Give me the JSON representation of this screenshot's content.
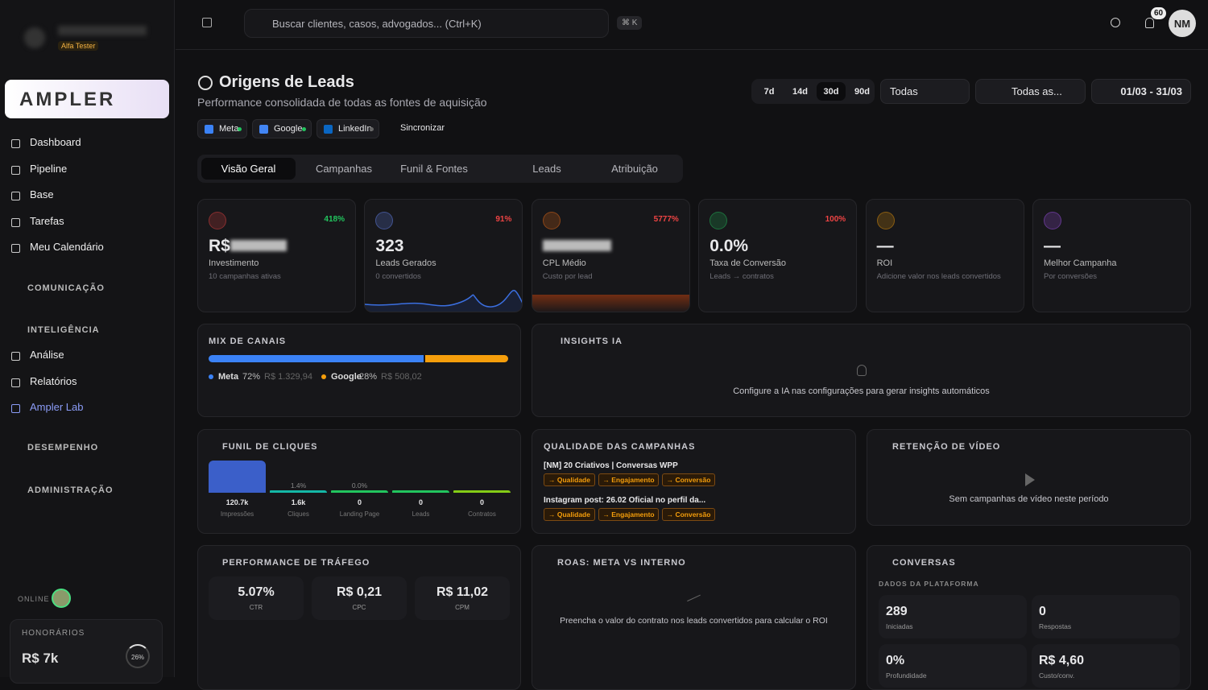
{
  "sidebar": {
    "badge": "Alfa Tester",
    "logo": "AMPLER",
    "nav": [
      "Dashboard",
      "Pipeline",
      "Base",
      "Tarefas",
      "Meu Calendário"
    ],
    "sections": [
      {
        "title": "COMUNICAÇÃO",
        "items": []
      },
      {
        "title": "INTELIGÊNCIA",
        "items": [
          "Análise",
          "Relatórios",
          "Ampler Lab"
        ]
      },
      {
        "title": "DESEMPENHO",
        "items": []
      },
      {
        "title": "ADMINISTRAÇÃO",
        "items": []
      }
    ],
    "online": "ONLINE",
    "fees": {
      "label": "HONORÁRIOS",
      "value": "R$ 7k",
      "percent": "26%"
    }
  },
  "topbar": {
    "search": "Buscar clientes, casos, advogados... (Ctrl+K)",
    "shortcut": "⌘ K",
    "notifications": "60",
    "avatar": "NM"
  },
  "header": {
    "title": "Origens de Leads",
    "subtitle": "Performance consolidada de todas as fontes de aquisição",
    "sources": [
      "Meta",
      "Google",
      "LinkedIn"
    ],
    "sync": "Sincronizar",
    "ranges": [
      "7d",
      "14d",
      "30d",
      "90d"
    ],
    "filter1": "Todas",
    "filter2": "Todas as...",
    "date": "01/03 - 31/03"
  },
  "tabs": [
    "Visão Geral",
    "Campanhas",
    "Funil & Fontes",
    "Leads",
    "Atribuição"
  ],
  "kpis": [
    {
      "value": "R$",
      "change": "418%",
      "label": "Investimento",
      "sub": "10 campanhas ativas"
    },
    {
      "value": "323",
      "change": "91%",
      "label": "Leads Gerados",
      "sub": "0 convertidos"
    },
    {
      "value": "",
      "change": "5777%",
      "label": "CPL Médio",
      "sub": "Custo por lead"
    },
    {
      "value": "0.0%",
      "change": "100%",
      "label": "Taxa de Conversão",
      "sub": "Leads → contratos"
    },
    {
      "value": "—",
      "change": "",
      "label": "ROI",
      "sub": "Adicione valor nos leads convertidos"
    },
    {
      "value": "—",
      "change": "",
      "label": "Melhor Campanha",
      "sub": "Por conversões"
    }
  ],
  "mix": {
    "title": "MIX DE CANAIS",
    "channels": [
      {
        "name": "Meta",
        "share": 72,
        "share_label": "72%",
        "amount": "R$ 1.329,94",
        "color": "#3b82f6"
      },
      {
        "name": "Google",
        "share": 28,
        "share_label": "28%",
        "amount": "R$ 508,02",
        "color": "#f59e0b"
      }
    ]
  },
  "insights": {
    "title": "INSIGHTS IA",
    "message": "Configure a IA nas configurações para gerar insights automáticos"
  },
  "funnel": {
    "title": "FUNIL DE CLIQUES",
    "stages": [
      "Impressões",
      "Cliques",
      "Landing Page",
      "Leads",
      "Contratos"
    ],
    "values": [
      120700,
      1600,
      0,
      0,
      0
    ],
    "value_labels": [
      "120.7k",
      "1.6k",
      "0",
      "0",
      "0"
    ],
    "rates": [
      null,
      1.4,
      0,
      null,
      null
    ],
    "rate_labels": [
      null,
      "1.4%",
      "0.0%",
      null,
      null
    ]
  },
  "quality": {
    "title": "QUALIDADE DAS CAMPANHAS",
    "campaigns": [
      {
        "name": "[NM] 20 Criativos | Conversas WPP",
        "tags": [
          "→ Qualidade",
          "→ Engajamento",
          "→ Conversão"
        ]
      },
      {
        "name": "Instagram post: 26.02 Oficial no perfil da...",
        "tags": [
          "→ Qualidade",
          "→ Engajamento",
          "→ Conversão"
        ]
      }
    ]
  },
  "video": {
    "title": "RETENÇÃO DE VÍDEO",
    "message": "Sem campanhas de vídeo neste período"
  },
  "traffic": {
    "title": "PERFORMANCE DE TRÁFEGO",
    "metrics": [
      {
        "value": "5.07%",
        "label": "CTR"
      },
      {
        "value": "R$ 0,21",
        "label": "CPC"
      },
      {
        "value": "R$ 11,02",
        "label": "CPM"
      }
    ]
  },
  "roas": {
    "title": "ROAS: META VS INTERNO",
    "message": "Preencha o valor do contrato nos leads convertidos para calcular o ROI"
  },
  "chats": {
    "title": "CONVERSAS",
    "subtitle": "DADOS DA PLATAFORMA",
    "stats": [
      {
        "value": "289",
        "label": "Iniciadas"
      },
      {
        "value": "0",
        "label": "Respostas"
      },
      {
        "value": "0%",
        "label": "Profundidade"
      },
      {
        "value": "R$ 4,60",
        "label": "Custo/conv."
      }
    ]
  }
}
